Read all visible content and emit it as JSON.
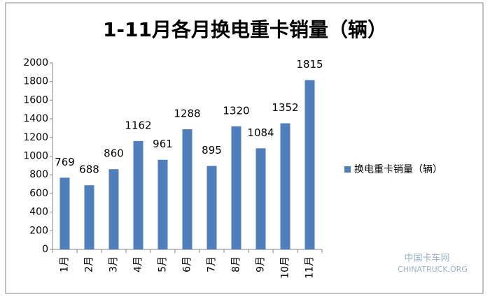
{
  "chart_data": {
    "type": "bar",
    "title": "1-11月各月换电重卡销量（辆）",
    "categories": [
      "1月",
      "2月",
      "3月",
      "4月",
      "5月",
      "6月",
      "7月",
      "8月",
      "9月",
      "10月",
      "11月"
    ],
    "series": [
      {
        "name": "换电重卡销量（辆）",
        "color": "#4f7ebd",
        "values": [
          769,
          688,
          860,
          1162,
          961,
          1288,
          895,
          1320,
          1084,
          1352,
          1815
        ]
      }
    ],
    "ylim": [
      0,
      2000
    ],
    "yticks": [
      0,
      200,
      400,
      600,
      800,
      1000,
      1200,
      1400,
      1600,
      1800,
      2000
    ],
    "grid": false,
    "legend": "right",
    "data_labels": true
  },
  "watermark": {
    "name": "中国卡车网",
    "site": "CHINATRUCK.ORG"
  }
}
